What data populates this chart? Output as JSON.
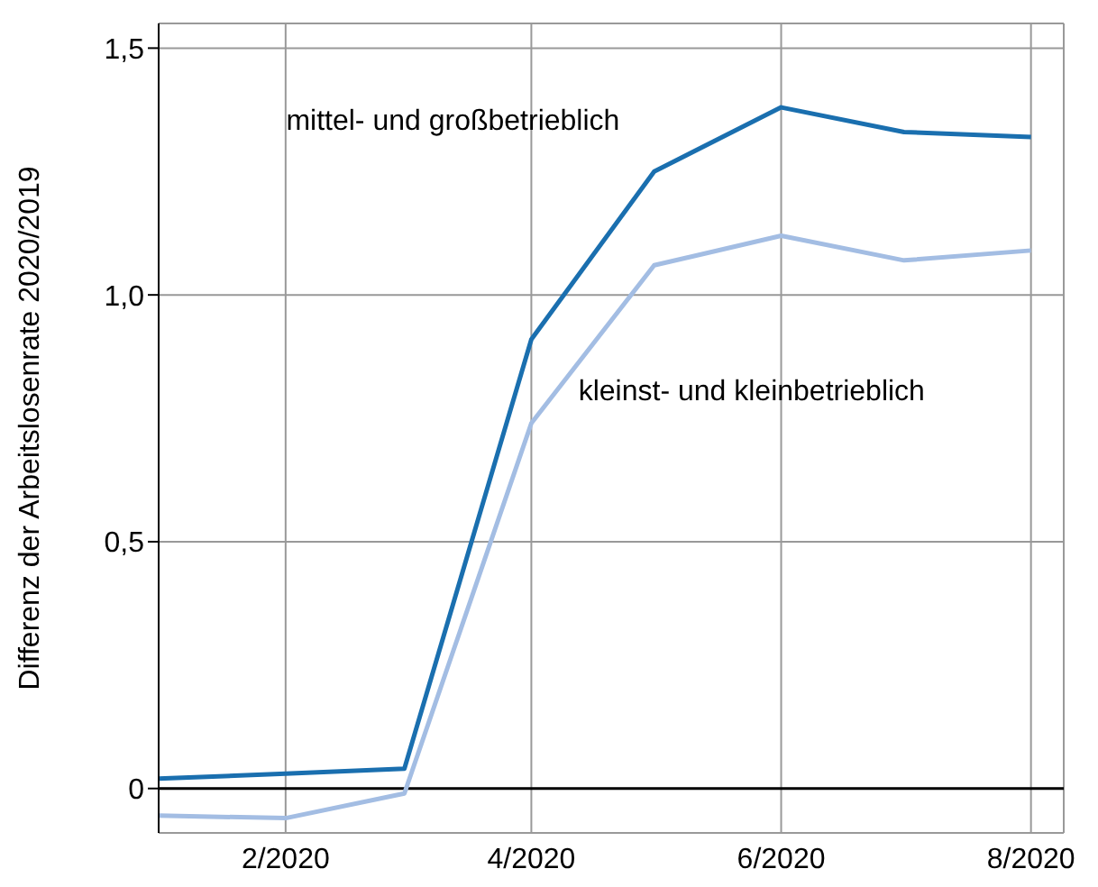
{
  "chart_data": {
    "type": "line",
    "ylabel": "Differenz der Arbeitslosenrate 2020/2019",
    "x": [
      "2020-01",
      "2020-02",
      "2020-03",
      "2020-04",
      "2020-05",
      "2020-06",
      "2020-07",
      "2020-08"
    ],
    "series": [
      {
        "name": "mittel- und großbetrieblich",
        "color": "#1a6faf",
        "values": [
          0.02,
          0.03,
          0.04,
          0.91,
          1.25,
          1.38,
          1.33,
          1.32
        ]
      },
      {
        "name": "kleinst- und kleinbetrieblich",
        "color": "#a3bde3",
        "values": [
          -0.055,
          -0.06,
          -0.01,
          0.74,
          1.06,
          1.12,
          1.07,
          1.09
        ]
      }
    ],
    "xlim": [
      "2020-01",
      "2020-08-09"
    ],
    "xticks": [
      {
        "value": "2020-02",
        "label": "2/2020"
      },
      {
        "value": "2020-04",
        "label": "4/2020"
      },
      {
        "value": "2020-06",
        "label": "6/2020"
      },
      {
        "value": "2020-08",
        "label": "8/2020"
      }
    ],
    "ylim": [
      -0.09,
      1.55
    ],
    "yticks": [
      {
        "value": 0,
        "label": "0"
      },
      {
        "value": 0.5,
        "label": "0,5"
      },
      {
        "value": 1,
        "label": "1,0"
      },
      {
        "value": 1.5,
        "label": "1,5"
      }
    ],
    "ref_lines": [
      {
        "axis": "y",
        "value": 0,
        "color": "#000000"
      }
    ],
    "grid": true,
    "marker": "none",
    "line_style": "solid"
  }
}
